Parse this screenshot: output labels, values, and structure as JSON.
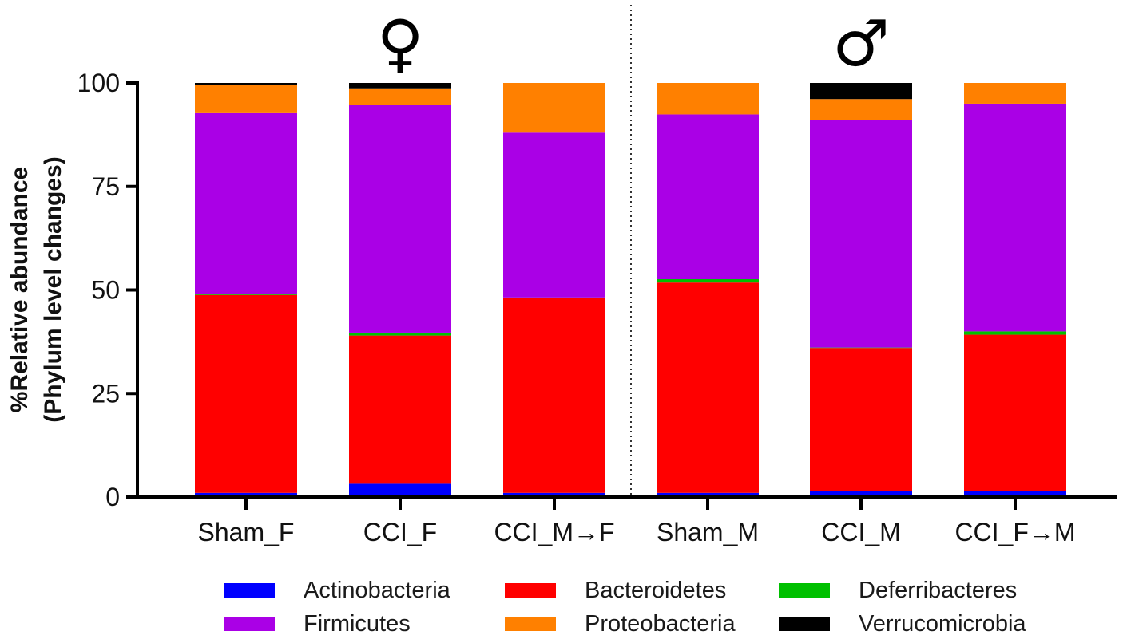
{
  "chart_data": {
    "type": "bar",
    "stacked": true,
    "title": "",
    "xlabel": "",
    "ylabel_line1": "%Relative abundance",
    "ylabel_line2": "(Phylum level changes)",
    "ylim": [
      0,
      100
    ],
    "yticks": [
      0,
      25,
      50,
      75,
      100
    ],
    "categories": [
      "Sham_F",
      "CCI_F",
      "CCI_M→F",
      "Sham_M",
      "CCI_M",
      "CCI_F→M"
    ],
    "group_symbols": [
      {
        "symbol": "♀",
        "center_category_index": 1
      },
      {
        "symbol": "♂",
        "center_category_index": 4
      }
    ],
    "divider_after_category_index": 2,
    "series": [
      {
        "name": "Actinobacteria",
        "color": "#0000ff",
        "values": [
          1.0,
          3.2,
          1.0,
          1.0,
          1.5,
          1.5
        ]
      },
      {
        "name": "Bacteroidetes",
        "color": "#ff0000",
        "values": [
          47.8,
          35.8,
          47.0,
          50.8,
          34.5,
          37.7
        ]
      },
      {
        "name": "Deferribacteres",
        "color": "#00c000",
        "values": [
          0.2,
          0.7,
          0.2,
          0.8,
          0.1,
          0.8
        ]
      },
      {
        "name": "Firmicutes",
        "color": "#aa00e6",
        "values": [
          43.7,
          55.0,
          39.8,
          39.8,
          55.0,
          55.0
        ]
      },
      {
        "name": "Proteobacteria",
        "color": "#ff8000",
        "values": [
          6.9,
          4.0,
          12.0,
          7.6,
          5.0,
          5.2
        ]
      },
      {
        "name": "Verrucomicrobia",
        "color": "#000000",
        "values": [
          0.4,
          1.8,
          0.0,
          0.0,
          3.9,
          0.0
        ]
      }
    ]
  }
}
